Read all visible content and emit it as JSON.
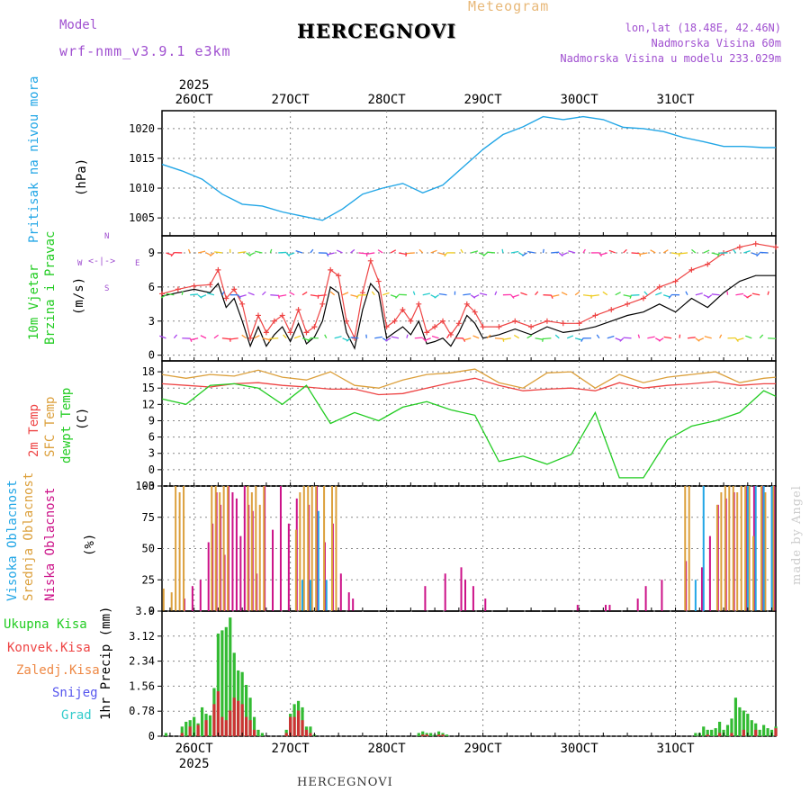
{
  "header": {
    "model_label": "Model",
    "model_name": "wrf-nmm_v3.9.1 e3km",
    "title": "HERCEGNOVI",
    "meteogram": "Meteogram",
    "lonlat": "lon,lat (18.48E, 42.46N)",
    "elevation": "Nadmorska Visina 60m",
    "model_elevation": "Nadmorska Visina u modelu 233.029m",
    "footer": "HERCEGNOVI",
    "credit": "made by Angel"
  },
  "colors": {
    "pressure": "#22a6e6",
    "wind_speed": "#000000",
    "wind_gust": "#ee4444",
    "temp2m": "#ee4444",
    "sfc_temp": "#dca03c",
    "dewpt": "#22cc22",
    "cloud_high": "#22a6e6",
    "cloud_mid": "#dca03c",
    "cloud_low": "#cc1188",
    "precip_total": "#33bb33",
    "precip_conv": "#cc3333",
    "grid": "#888888"
  },
  "chart_data": [
    {
      "type": "line",
      "name": "pressure",
      "ylabel_main": "Pritisak na nivou mora",
      "ylabel_unit": "(hPa)",
      "ylim": [
        1002,
        1023
      ],
      "yticks": [
        "1005",
        "1010",
        "1015",
        "1020"
      ],
      "x_top": [
        "26OCT",
        "27OCT",
        "28OCT",
        "29OCT",
        "30OCT",
        "31OCT"
      ],
      "year_top": "2025",
      "x_hours": [
        0,
        5,
        10,
        15,
        20,
        25,
        30,
        35,
        40,
        45,
        50,
        55,
        60,
        65,
        70,
        75,
        80,
        85,
        90,
        95,
        100,
        105,
        110,
        115,
        120,
        125,
        130,
        135,
        140,
        145,
        150,
        153
      ],
      "values": [
        1014,
        1012.9,
        1011.5,
        1009,
        1007.3,
        1007,
        1006,
        1005.3,
        1004.6,
        1006.5,
        1009,
        1010,
        1010.8,
        1009.2,
        1010.5,
        1013.5,
        1016.5,
        1019,
        1020.3,
        1022,
        1021.5,
        1022,
        1021.5,
        1020.2,
        1020,
        1019.5,
        1018.5,
        1017.8,
        1017,
        1017,
        1016.8,
        1016.8
      ]
    },
    {
      "type": "line",
      "name": "wind",
      "ylabel_main": "10m Vjetar",
      "ylabel_sub": "Brzina i Pravac",
      "ylabel_unit": "(m/s)",
      "compass": {
        "n": "N",
        "s": "S",
        "w": "W",
        "e": "E"
      },
      "ylim": [
        -0.5,
        10.5
      ],
      "yticks": [
        "0",
        "3",
        "6",
        "9"
      ],
      "x_hours": [
        0,
        4,
        8,
        12,
        14,
        16,
        18,
        20,
        22,
        24,
        26,
        28,
        30,
        32,
        34,
        36,
        38,
        40,
        42,
        44,
        46,
        48,
        50,
        52,
        54,
        56,
        58,
        60,
        62,
        64,
        66,
        68,
        70,
        72,
        74,
        76,
        78,
        80,
        84,
        88,
        92,
        96,
        100,
        104,
        108,
        112,
        116,
        120,
        124,
        128,
        132,
        136,
        140,
        144,
        148,
        153
      ],
      "series": [
        {
          "name": "speed",
          "values": [
            5.2,
            5.5,
            5.8,
            5.5,
            6.3,
            4.2,
            5.0,
            3.0,
            0.8,
            2.5,
            0.8,
            1.8,
            2.5,
            1.2,
            2.8,
            1.0,
            1.6,
            3.0,
            6.0,
            5.5,
            2.0,
            0.6,
            4.0,
            6.3,
            5.5,
            1.5,
            2.0,
            2.5,
            1.8,
            3.0,
            1.0,
            1.2,
            1.5,
            0.8,
            2.0,
            3.5,
            2.8,
            1.5,
            1.8,
            2.3,
            1.8,
            2.5,
            2.0,
            2.2,
            2.5,
            3.0,
            3.5,
            3.8,
            4.5,
            3.8,
            5.0,
            4.2,
            5.5,
            6.5,
            7.0,
            7.0
          ]
        },
        {
          "name": "gust",
          "values": [
            5.4,
            5.8,
            6.1,
            6.2,
            7.5,
            5.0,
            5.8,
            4.5,
            1.5,
            3.5,
            2.0,
            3.0,
            3.5,
            2.0,
            4.0,
            2.0,
            2.5,
            4.5,
            7.5,
            7.0,
            3.0,
            1.5,
            5.5,
            8.3,
            6.5,
            2.5,
            3.0,
            4.0,
            3.0,
            4.5,
            2.0,
            2.5,
            3.0,
            1.8,
            2.8,
            4.5,
            3.8,
            2.5,
            2.5,
            3.0,
            2.5,
            3.0,
            2.8,
            2.8,
            3.5,
            4.0,
            4.5,
            5.0,
            6.0,
            6.5,
            7.5,
            8.0,
            9.0,
            9.5,
            9.8,
            9.5
          ]
        }
      ]
    },
    {
      "type": "line",
      "name": "temperature",
      "ylabel_main": "2m Temp",
      "ylabel_sub": "SFC Temp",
      "ylabel_sub2": "dewpt Temp",
      "ylabel_unit": "(C)",
      "ylim": [
        -3,
        20
      ],
      "yticks": [
        "-3",
        "0",
        "3",
        "6",
        "9",
        "12",
        "15",
        "18"
      ],
      "x_hours": [
        0,
        6,
        12,
        18,
        24,
        30,
        36,
        42,
        48,
        54,
        60,
        66,
        72,
        78,
        84,
        90,
        96,
        102,
        108,
        114,
        120,
        126,
        132,
        138,
        144,
        150,
        153
      ],
      "series": [
        {
          "name": "2m Temp",
          "values": [
            15.8,
            15.5,
            15.2,
            15.8,
            16.0,
            15.5,
            15.2,
            14.8,
            14.8,
            13.8,
            14.0,
            15.0,
            16.0,
            16.8,
            15.5,
            14.5,
            14.8,
            15.0,
            14.5,
            16.0,
            15.0,
            15.5,
            15.8,
            16.2,
            15.5,
            15.8,
            15.8
          ]
        },
        {
          "name": "SFC Temp",
          "values": [
            17.5,
            16.8,
            17.5,
            17.2,
            18.3,
            17.0,
            16.5,
            18.0,
            15.5,
            15.0,
            16.5,
            17.5,
            17.8,
            18.5,
            16.0,
            15.0,
            17.8,
            18.0,
            15.0,
            17.5,
            16.0,
            17.0,
            17.5,
            18.0,
            16.0,
            16.8,
            17.0
          ]
        },
        {
          "name": "dewpt Temp",
          "values": [
            13.0,
            12.0,
            15.5,
            15.8,
            15.0,
            12.0,
            15.5,
            8.5,
            10.5,
            9.0,
            11.5,
            12.5,
            11.0,
            10.0,
            1.5,
            2.5,
            1.0,
            2.8,
            10.5,
            -1.5,
            -1.5,
            5.5,
            8.0,
            9.0,
            10.5,
            14.5,
            13.5
          ]
        }
      ]
    },
    {
      "type": "bar",
      "name": "clouds",
      "ylabel_main": "Visoka Oblacnost",
      "ylabel_sub": "Srednja Oblacnost",
      "ylabel_sub2": "Niska Oblacnost",
      "ylabel_unit": "(%)",
      "ylim": [
        0,
        100
      ],
      "yticks": [
        "0",
        "25",
        "50",
        "75",
        "100"
      ],
      "series": [
        {
          "name": "Niska Oblacnost",
          "x": [
            5,
            7,
            9,
            11,
            12,
            13,
            14,
            15,
            16,
            17,
            18,
            19,
            20,
            21,
            22,
            23,
            25,
            27,
            29,
            31,
            33,
            36,
            38,
            40,
            42,
            44,
            46,
            47,
            65,
            70,
            74,
            75,
            77,
            80,
            103,
            110,
            111,
            118,
            120,
            124,
            130,
            134,
            136,
            138,
            140,
            142,
            145,
            147,
            149,
            152
          ],
          "values": [
            10,
            20,
            25,
            55,
            70,
            95,
            85,
            45,
            100,
            95,
            90,
            60,
            100,
            85,
            80,
            30,
            100,
            65,
            100,
            70,
            90,
            85,
            100,
            55,
            70,
            30,
            15,
            10,
            20,
            30,
            35,
            25,
            20,
            10,
            5,
            5,
            5,
            10,
            20,
            25,
            40,
            35,
            60,
            85,
            90,
            95,
            100,
            100,
            100,
            100
          ]
        },
        {
          "name": "Srednja Oblacnost",
          "x": [
            1,
            3,
            4,
            5,
            6,
            13,
            14,
            15,
            16,
            17,
            22,
            23,
            24,
            25,
            26,
            34,
            35,
            36,
            37,
            38,
            39,
            41,
            43,
            44,
            131,
            132,
            139,
            140,
            141,
            142,
            143,
            144,
            145,
            146,
            147,
            148,
            150,
            151,
            153
          ],
          "values": [
            18,
            15,
            100,
            95,
            100,
            100,
            100,
            95,
            100,
            100,
            100,
            95,
            100,
            85,
            100,
            65,
            95,
            100,
            100,
            100,
            100,
            100,
            100,
            100,
            100,
            100,
            85,
            95,
            100,
            100,
            100,
            95,
            100,
            100,
            100,
            60,
            100,
            95,
            100
          ]
        },
        {
          "name": "Visoka Oblacnost",
          "x": [
            35,
            37,
            39,
            41,
            133,
            135,
            146,
            148,
            150,
            152
          ],
          "values": [
            25,
            25,
            80,
            25,
            25,
            100,
            100,
            100,
            100,
            100
          ]
        }
      ]
    },
    {
      "type": "bar",
      "name": "precipitation",
      "ylabel_main": "1hr Precip (mm)",
      "legend": [
        "Ukupna Kisa",
        "Konvek.Kisa",
        "Zaledj.Kisa",
        "Snijeg",
        "Grad"
      ],
      "ylim": [
        0,
        3.9
      ],
      "yticks": [
        "0",
        "0.78",
        "1.56",
        "2.34",
        "3.12",
        "3.9"
      ],
      "x_bottom": [
        "26OCT",
        "27OCT",
        "28OCT",
        "29OCT",
        "30OCT",
        "31OCT"
      ],
      "year_bottom": "2025",
      "series": [
        {
          "name": "Ukupna Kisa",
          "x": [
            1,
            5,
            6,
            7,
            8,
            9,
            10,
            11,
            12,
            13,
            14,
            15,
            16,
            17,
            18,
            19,
            20,
            21,
            22,
            23,
            24,
            25,
            31,
            32,
            33,
            34,
            35,
            36,
            37,
            38,
            64,
            65,
            66,
            67,
            68,
            69,
            70,
            71,
            133,
            134,
            135,
            136,
            137,
            138,
            139,
            140,
            141,
            142,
            143,
            144,
            145,
            146,
            147,
            148,
            149,
            150,
            151,
            152,
            153
          ],
          "values": [
            0.1,
            0.3,
            0.45,
            0.5,
            0.6,
            0.4,
            0.9,
            0.7,
            0.65,
            1.5,
            3.2,
            3.3,
            3.4,
            3.7,
            2.6,
            2.05,
            2.0,
            1.6,
            1.2,
            0.6,
            0.2,
            0.1,
            0.2,
            0.7,
            1.0,
            1.1,
            0.9,
            0.3,
            0.3,
            0.05,
            0.1,
            0.15,
            0.1,
            0.1,
            0.05,
            0.15,
            0.1,
            0.05,
            0.1,
            0.1,
            0.3,
            0.2,
            0.2,
            0.25,
            0.45,
            0.2,
            0.35,
            0.55,
            1.2,
            0.9,
            0.8,
            0.7,
            0.5,
            0.4,
            0.2,
            0.35,
            0.25,
            0.2,
            0.3
          ]
        },
        {
          "name": "Konvek.Kisa",
          "x": [
            5,
            7,
            9,
            11,
            13,
            14,
            15,
            16,
            17,
            18,
            19,
            20,
            21,
            22,
            23,
            31,
            32,
            33,
            34,
            35,
            36,
            37,
            65,
            66,
            69,
            70,
            136,
            139,
            142,
            145,
            148,
            153
          ],
          "values": [
            0.1,
            0.3,
            0.35,
            0.5,
            1.0,
            1.4,
            0.6,
            0.5,
            0.8,
            1.2,
            1.1,
            1.0,
            0.6,
            0.5,
            0.2,
            0.1,
            0.6,
            0.6,
            0.8,
            0.5,
            0.2,
            0.1,
            0.05,
            0.05,
            0.05,
            0.05,
            0.05,
            0.1,
            0.1,
            0.2,
            0.2,
            0.25
          ]
        }
      ]
    }
  ]
}
